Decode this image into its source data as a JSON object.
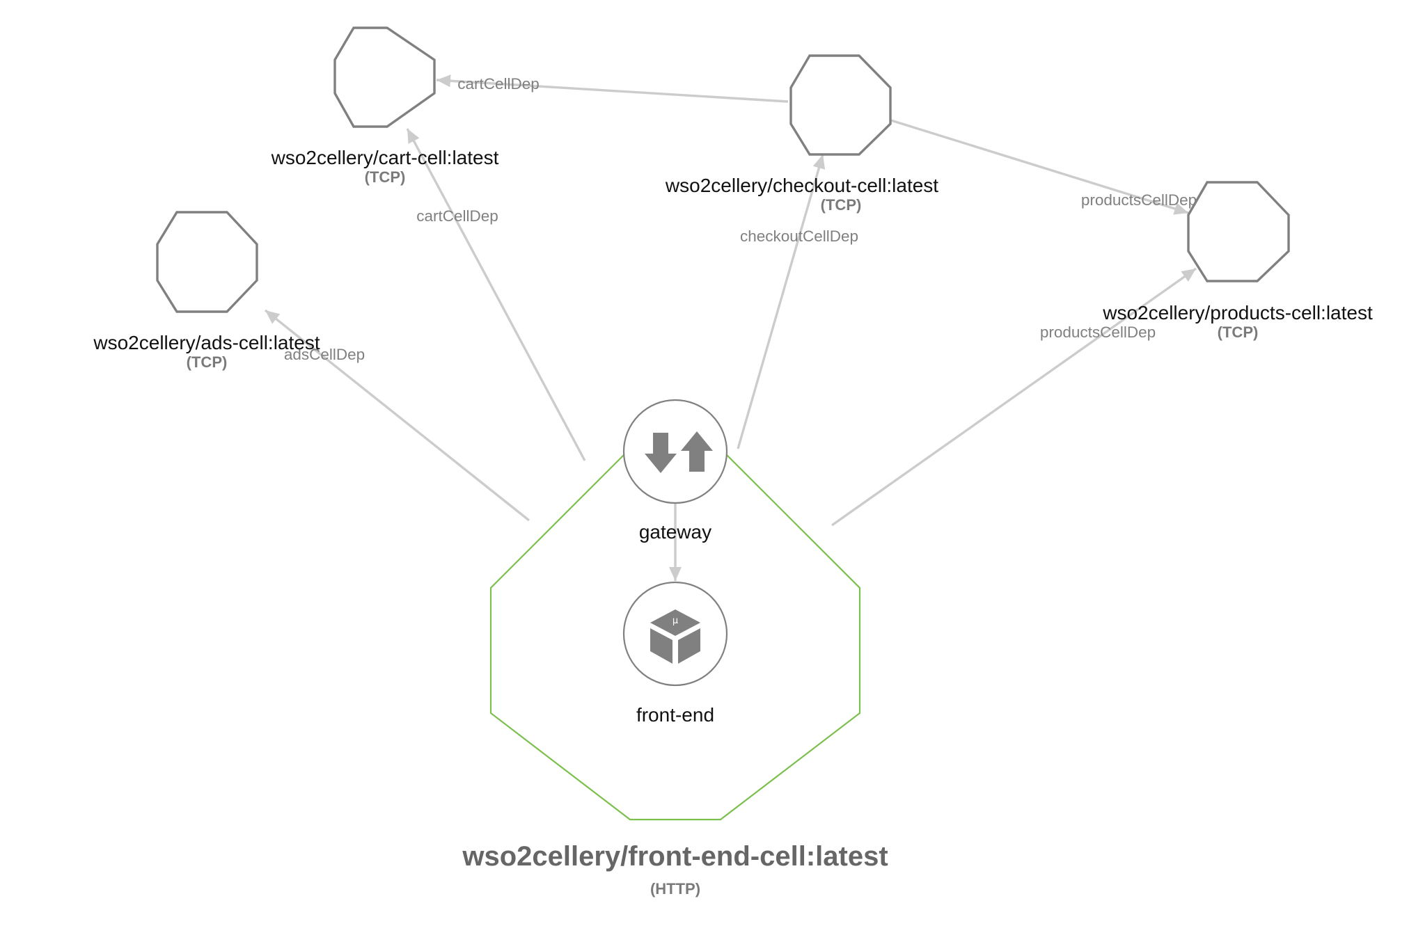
{
  "diagram": {
    "main_cell": {
      "name": "wso2cellery/front-end-cell:latest",
      "protocol": "(HTTP)",
      "border_color": "#7bbf4d"
    },
    "components": [
      {
        "name": "gateway",
        "icon": "gateway-arrows-icon"
      },
      {
        "name": "front-end",
        "icon": "microservice-cube-icon",
        "icon_text": "μ"
      }
    ],
    "cells": [
      {
        "name": "wso2cellery/cart-cell:latest",
        "protocol": "(TCP)"
      },
      {
        "name": "wso2cellery/checkout-cell:latest",
        "protocol": "(TCP)"
      },
      {
        "name": "wso2cellery/products-cell:latest",
        "protocol": "(TCP)"
      },
      {
        "name": "wso2cellery/ads-cell:latest",
        "protocol": "(TCP)"
      }
    ],
    "edges": [
      {
        "from": "wso2cellery/front-end-cell:latest",
        "to": "wso2cellery/cart-cell:latest",
        "label": "cartCellDep"
      },
      {
        "from": "wso2cellery/front-end-cell:latest",
        "to": "wso2cellery/checkout-cell:latest",
        "label": "checkoutCellDep"
      },
      {
        "from": "wso2cellery/front-end-cell:latest",
        "to": "wso2cellery/products-cell:latest",
        "label": "productsCellDep"
      },
      {
        "from": "wso2cellery/front-end-cell:latest",
        "to": "wso2cellery/ads-cell:latest",
        "label": "adsCellDep"
      },
      {
        "from": "wso2cellery/checkout-cell:latest",
        "to": "wso2cellery/cart-cell:latest",
        "label": "cartCellDep"
      },
      {
        "from": "wso2cellery/checkout-cell:latest",
        "to": "wso2cellery/products-cell:latest",
        "label": "productsCellDep"
      },
      {
        "from": "gateway",
        "to": "front-end",
        "label": ""
      }
    ],
    "colors": {
      "edge": "#cccccc",
      "node_border": "#808080",
      "label_text": "#808080"
    }
  }
}
